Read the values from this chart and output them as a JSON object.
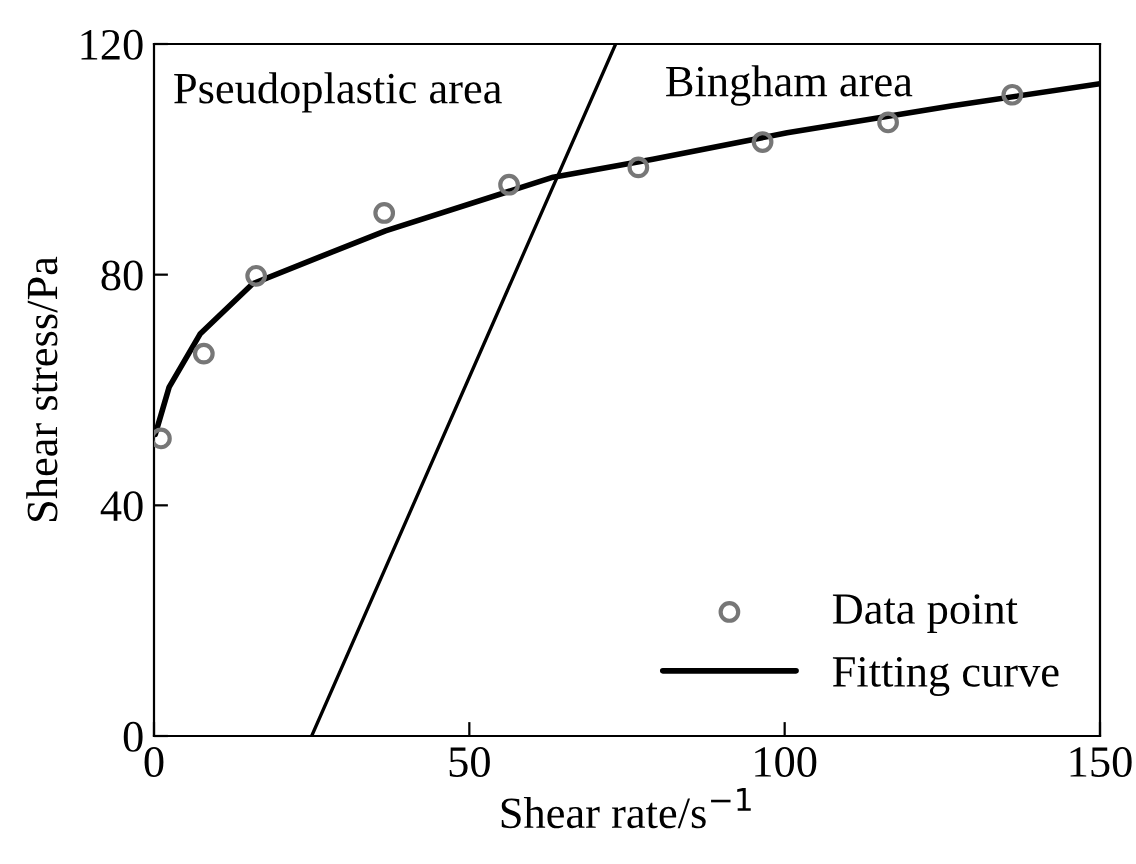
{
  "chart_data": {
    "type": "scatter",
    "xlabel": "Shear rate/s$^{−1}$",
    "ylabel": "Shear stress/Pa",
    "xlim": [
      0,
      150
    ],
    "ylim": [
      0,
      120
    ],
    "xticks": [
      0,
      50,
      100,
      150
    ],
    "yticks": [
      0,
      40,
      80,
      120
    ],
    "grid": false,
    "legend": "bottom right",
    "annotations": [
      "Pseudoplastic area",
      "Bingham area"
    ],
    "series": [
      {
        "name": "Data point",
        "marker": "circle",
        "color": "#777777",
        "x": [
          1.1,
          7.9,
          16.2,
          36.5,
          56.3,
          76.8,
          96.5,
          116.4,
          136.1
        ],
        "values": [
          51.6,
          66.3,
          79.8,
          90.7,
          95.6,
          98.6,
          103.0,
          106.4,
          111.2
        ]
      },
      {
        "name": "Fitting curve",
        "type": "line",
        "marker": "none",
        "line_style": "solid",
        "color": "#000000",
        "x": [
          0.2,
          2.4,
          7.3,
          15.6,
          26.1,
          36.7,
          63.3,
          79.1,
          100.4,
          126.6,
          150
        ],
        "values": [
          52.3,
          60.5,
          69.7,
          78.4,
          83.0,
          87.6,
          96.9,
          100.0,
          104.6,
          109.3,
          113.1
        ]
      },
      {
        "type": "line",
        "marker": "none",
        "line_style": "solid",
        "color": "#000000",
        "x": [
          25.0,
          73.2
        ],
        "values": [
          0,
          120
        ]
      }
    ]
  }
}
